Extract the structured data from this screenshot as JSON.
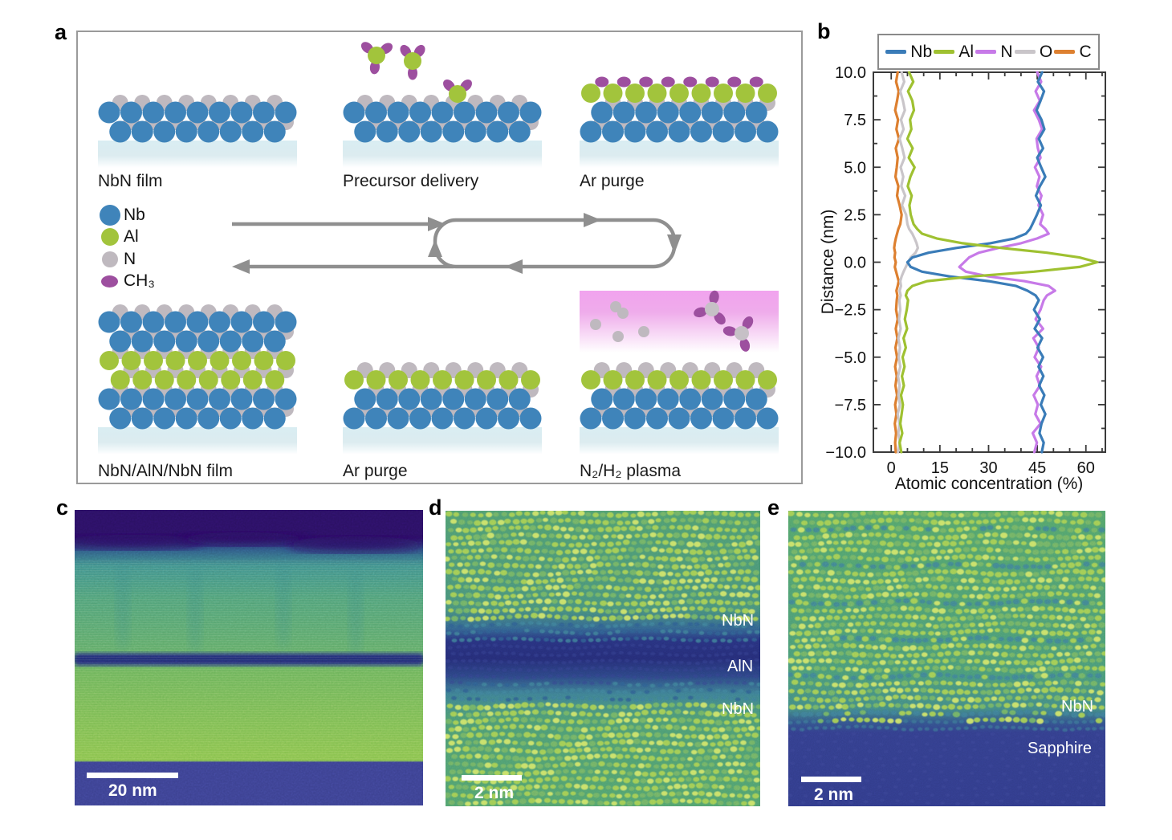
{
  "panel_letters": {
    "a": "a",
    "b": "b",
    "c": "c",
    "d": "d",
    "e": "e"
  },
  "panel_a": {
    "stage_labels": [
      "NbN film",
      "Precursor delivery",
      "Ar purge",
      "NbN/AlN/NbN film",
      "Ar purge",
      "N₂/H₂ plasma"
    ],
    "legend": [
      {
        "name": "Nb",
        "label": "Nb",
        "color": "#3f84ba"
      },
      {
        "name": "Al",
        "label": "Al",
        "color": "#a2c43c"
      },
      {
        "name": "N",
        "label": "N",
        "color": "#bfb9bf"
      },
      {
        "name": "CH3",
        "label": "CH₃",
        "color": "#9d4f9f"
      }
    ],
    "colors": {
      "Nb": "#3f84ba",
      "Al": "#a2c43c",
      "N": "#bfb9bf",
      "CH3": "#9d4f9f",
      "mol_center_gray": "#c6c0c6",
      "substrate_top": "#d9edf2",
      "substrate_bottom": "#ffffff",
      "plasma_top": "#f1a3ee",
      "plasma_bottom": "#ffffff",
      "arrow": "#8f8f8f",
      "border": "#9a9a9a"
    }
  },
  "chart_data": {
    "type": "line",
    "title": "",
    "xlabel": "Atomic concentration (%)",
    "ylabel": "Distance (nm)",
    "xlim": [
      -5.5,
      66
    ],
    "ylim": [
      -10,
      10
    ],
    "x_ticks": [
      0,
      15,
      30,
      45,
      60
    ],
    "x_minor_step": 5,
    "y_ticks": [
      10,
      7.5,
      5,
      2.5,
      0,
      -2.5,
      -5,
      -7.5,
      -10
    ],
    "y_tick_labels": [
      "10.0",
      "7.5",
      "5.0",
      "2.5",
      "0.0",
      "−2.5",
      "−5.0",
      "−7.5",
      "−10.0"
    ],
    "y_minor_step": 1.25,
    "legend_position": "top",
    "grid": false,
    "distance": [
      10,
      9.5,
      9,
      8.5,
      8,
      7.5,
      7,
      6.5,
      6,
      5.5,
      5,
      4.5,
      4,
      3.5,
      3,
      2.5,
      2,
      1.75,
      1.5,
      1.25,
      1,
      0.75,
      0.5,
      0.25,
      0,
      -0.25,
      -0.5,
      -0.75,
      -1,
      -1.25,
      -1.5,
      -1.75,
      -2,
      -2.5,
      -3,
      -3.5,
      -4,
      -4.5,
      -5,
      -5.5,
      -6,
      -6.5,
      -7,
      -7.5,
      -8,
      -8.5,
      -9,
      -9.5,
      -10
    ],
    "series": [
      {
        "name": "Nb",
        "color": "#3a7cb8",
        "values": [
          46.5,
          45.2,
          47.1,
          46,
          44.8,
          46.3,
          47.2,
          45.5,
          46.8,
          45,
          46.2,
          47.5,
          45.8,
          44.6,
          46.1,
          44.9,
          43.5,
          42.8,
          41.5,
          38,
          30.5,
          20,
          11.5,
          6.5,
          5,
          6,
          9.5,
          18,
          30,
          38.5,
          42,
          44.5,
          45.5,
          44,
          45.8,
          44.2,
          46.5,
          45.1,
          46.8,
          45.4,
          46.9,
          45.6,
          47.2,
          46.1,
          47.5,
          46.3,
          45.7,
          47,
          46.4
        ]
      },
      {
        "name": "Al",
        "color": "#9fc131",
        "values": [
          5.5,
          6.8,
          5.2,
          6.5,
          7,
          5.8,
          6.2,
          5,
          6.6,
          5.4,
          7.2,
          5.9,
          5.1,
          6.3,
          5.6,
          6,
          6.9,
          8,
          9.5,
          14,
          22,
          34,
          48,
          58,
          63.5,
          58,
          44,
          25,
          11,
          6.5,
          5,
          4.5,
          5.2,
          4.8,
          4.2,
          4.9,
          3.8,
          4.5,
          3.5,
          4.1,
          3.3,
          3.9,
          3,
          3.6,
          3.2,
          2.8,
          3.4,
          2.6,
          3.1
        ]
      },
      {
        "name": "N",
        "color": "#c77ae8",
        "values": [
          45,
          46.2,
          44.5,
          45.8,
          44,
          45.5,
          46.5,
          44.8,
          45.2,
          46,
          44.3,
          45.7,
          44.9,
          46.3,
          45.4,
          46.8,
          45.9,
          47.5,
          48.5,
          45,
          40,
          33,
          27,
          24,
          22.5,
          21,
          23,
          30,
          41,
          48.5,
          50.5,
          48,
          47,
          46,
          44.5,
          46.8,
          43.8,
          45.5,
          44.2,
          46.2,
          44.8,
          45.8,
          43.9,
          45.2,
          44.4,
          46,
          43.6,
          44.9,
          44.1
        ]
      },
      {
        "name": "O",
        "color": "#c9c5c9",
        "values": [
          3.2,
          4,
          2.8,
          3.6,
          4.2,
          3,
          3.8,
          2.6,
          3.4,
          4.1,
          2.9,
          3.7,
          3.1,
          4.3,
          3.3,
          4.6,
          5,
          5.5,
          6.5,
          7.2,
          7.8,
          8.2,
          7.5,
          6,
          5.2,
          4.5,
          3.8,
          3.2,
          2.8,
          3,
          2.6,
          2.9,
          2.5,
          2.8,
          2.4,
          2.9,
          2.2,
          2.7,
          2.3,
          2.8,
          2.1,
          2.6,
          2.2,
          2.7,
          2,
          2.5,
          2.2,
          2.6,
          2.1
        ]
      },
      {
        "name": "C",
        "color": "#dd8030",
        "values": [
          2,
          1.5,
          2.3,
          1.8,
          1.2,
          2.1,
          1.6,
          2.4,
          1.4,
          2,
          1.7,
          1.3,
          2.2,
          1.8,
          2.6,
          3.2,
          2.8,
          2.2,
          1.8,
          1.4,
          1.1,
          0.9,
          1.2,
          1,
          1.4,
          1.1,
          1.5,
          1.9,
          2.3,
          2,
          1.6,
          1.9,
          1.7,
          1.5,
          2,
          1.4,
          1.9,
          1.3,
          1.8,
          1.2,
          1.7,
          1.3,
          1.8,
          1.2,
          1.6,
          1.1,
          1.5,
          1.2,
          1.4
        ]
      }
    ],
    "draw_order": [
      "C",
      "O",
      "N",
      "Nb",
      "Al"
    ]
  },
  "panel_c": {
    "scale_bar": "20 nm",
    "colors": {
      "vacuum": "#2b1063",
      "nbn_top": "#4a9c79",
      "aln_line": "#26307e",
      "nbn_bottom": "#87c14d",
      "sapphire": "#3c4191"
    }
  },
  "panel_d": {
    "labels": {
      "top": "NbN",
      "middle": "AlN",
      "bottom": "NbN"
    },
    "scale_bar": "2 nm",
    "colors": {
      "film": "#4f9d70",
      "interface": "#252c76",
      "dot_bright": "#cfe468",
      "dot_mid": "#a6cf52",
      "dot_low": "#74b364",
      "dot_teal": "#3e7f98",
      "dot_dark": "#36418f"
    }
  },
  "panel_e": {
    "labels": {
      "film": "NbN",
      "substrate": "Sapphire"
    },
    "scale_bar": "2 nm",
    "colors": {
      "film": "#54a46b",
      "sapphire": "#333e8c",
      "dot_bright": "#cfe468",
      "dot_mid": "#a6cf52",
      "dot_low": "#74b364",
      "dot_teal": "#3e7f98",
      "dot_dark": "#3b4596"
    }
  }
}
